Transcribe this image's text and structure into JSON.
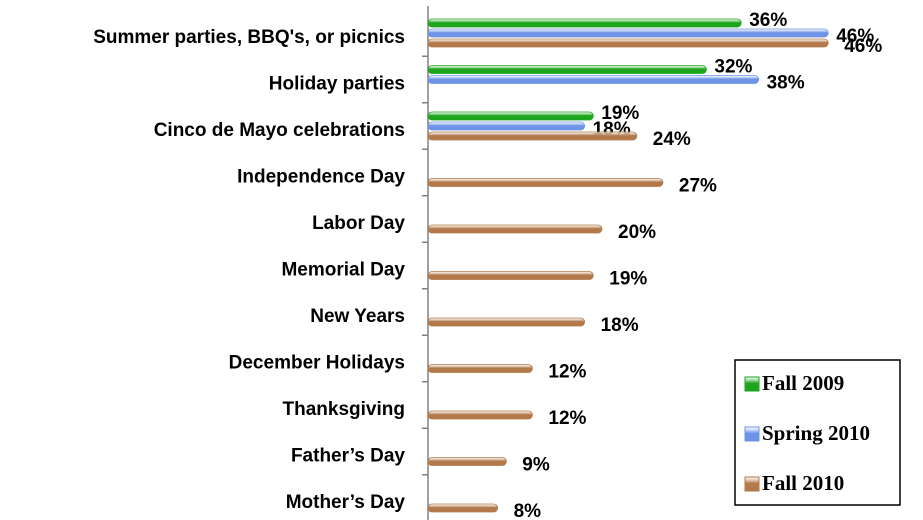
{
  "chart_data": {
    "type": "bar",
    "orientation": "horizontal",
    "categories": [
      "Summer parties, BBQ's, or picnics",
      "Holiday parties",
      "Cinco de Mayo celebrations",
      "Independence Day",
      "Labor Day",
      "Memorial Day",
      "New Years",
      "December Holidays",
      "Thanksgiving",
      "Father’s Day",
      "Mother’s Day"
    ],
    "series": [
      {
        "name": "Fall 2009",
        "color": "#1ea51e",
        "values": [
          36,
          32,
          19,
          null,
          null,
          null,
          null,
          null,
          null,
          null,
          null
        ],
        "value_labels": [
          "36%",
          "32%",
          "19%",
          null,
          null,
          null,
          null,
          null,
          null,
          null,
          null
        ]
      },
      {
        "name": "Spring 2010",
        "color": "#6e94e8",
        "values": [
          46,
          38,
          18,
          null,
          null,
          null,
          null,
          null,
          null,
          null,
          null
        ],
        "value_labels": [
          "46%",
          "38%",
          "18%",
          null,
          null,
          null,
          null,
          null,
          null,
          null,
          null
        ]
      },
      {
        "name": "Fall 2010",
        "color": "#b3794a",
        "values": [
          46,
          null,
          24,
          27,
          20,
          19,
          18,
          12,
          12,
          9,
          8
        ],
        "value_labels": [
          "46%",
          null,
          "24%",
          "27%",
          "20%",
          "19%",
          "18%",
          "12%",
          "12%",
          "9%",
          "8%"
        ]
      }
    ],
    "xlim": [
      0,
      50
    ],
    "legend": "lower right"
  }
}
